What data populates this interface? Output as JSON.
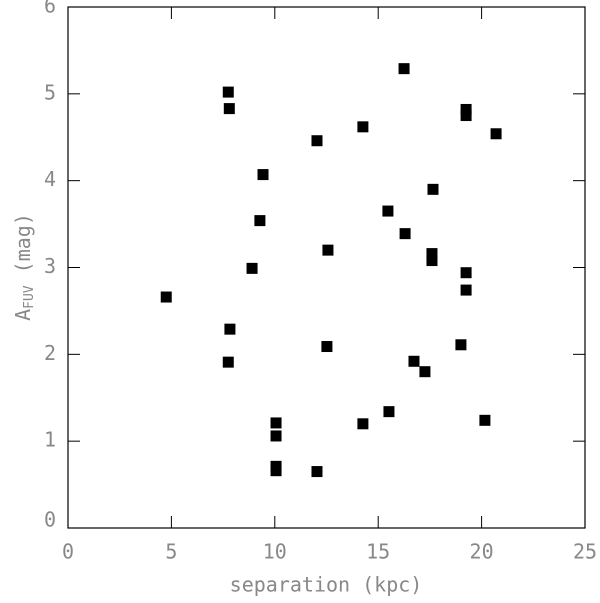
{
  "chart_data": {
    "type": "scatter",
    "xlabel": "separation (kpc)",
    "ylabel": {
      "main": "A",
      "sub": "FUV",
      "rest": " (mag)"
    },
    "xlim": [
      0,
      25
    ],
    "ylim": [
      0,
      6
    ],
    "xticks": [
      0,
      5,
      10,
      15,
      20,
      25
    ],
    "yticks": [
      0,
      1,
      2,
      3,
      4,
      5,
      6
    ],
    "color": "#000000",
    "x": [
      4.75,
      7.75,
      7.8,
      7.83,
      7.75,
      8.9,
      9.28,
      9.43,
      10.06,
      10.06,
      10.06,
      10.06,
      12.04,
      12.04,
      12.57,
      12.52,
      14.26,
      14.26,
      15.47,
      15.52,
      16.25,
      16.3,
      16.73,
      17.26,
      17.65,
      17.6,
      17.6,
      19.25,
      19.25,
      19.25,
      19.25,
      19.0,
      20.7,
      20.16
    ],
    "y": [
      2.66,
      5.02,
      4.83,
      2.29,
      1.91,
      2.99,
      3.54,
      4.07,
      1.21,
      1.06,
      0.71,
      0.66,
      0.65,
      4.46,
      3.2,
      2.09,
      4.62,
      1.2,
      3.65,
      1.34,
      5.29,
      3.39,
      1.92,
      1.8,
      3.9,
      3.16,
      3.08,
      4.82,
      4.75,
      2.94,
      2.74,
      2.11,
      4.54,
      1.24
    ]
  }
}
